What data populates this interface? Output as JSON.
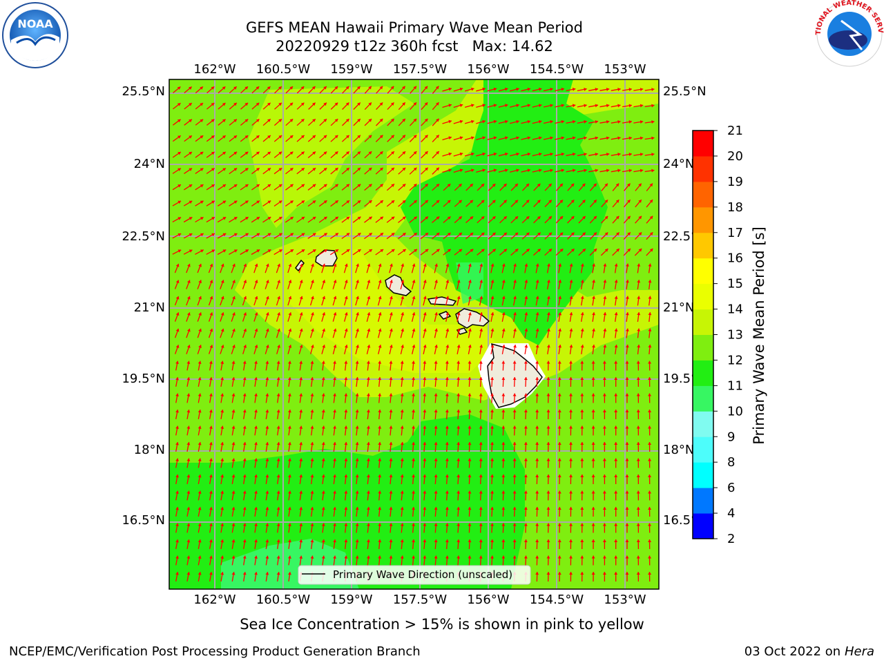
{
  "title_line1": "GEFS MEAN Hawaii Primary Wave Mean Period",
  "title_line2": "20220929 t12z 360h fcst   Max: 14.62",
  "lon_ticks": [
    "162°W",
    "160.5°W",
    "159°W",
    "157.5°W",
    "156°W",
    "154.5°W",
    "153°W"
  ],
  "lat_ticks": [
    "25.5°N",
    "24°N",
    "22.5°N",
    "21°N",
    "19.5°N",
    "18°N",
    "16.5°N"
  ],
  "colorbar": {
    "label": "Primary Wave Mean Period [s]",
    "ticks": [
      "2",
      "4",
      "6",
      "8",
      "9",
      "10",
      "11",
      "12",
      "13",
      "14",
      "15",
      "16",
      "17",
      "18",
      "19",
      "20",
      "21"
    ],
    "colors": [
      "#0000ff",
      "#0078ff",
      "#00ffff",
      "#4dfdfb",
      "#80fbf0",
      "#37f662",
      "#22ee13",
      "#7fee10",
      "#c7f505",
      "#eaff00",
      "#ffff00",
      "#ffc800",
      "#ff9600",
      "#ff6400",
      "#ff3200",
      "#ff0000"
    ]
  },
  "legend_label": "Primary Wave Direction (unscaled)",
  "caption": "Sea Ice Concentration > 15% is shown in pink to yellow",
  "credit": "NCEP/EMC/Verification Post Processing Product Generation Branch",
  "date_text": "03 Oct 2022 on ",
  "host": "Hera",
  "logos": {
    "left": "NOAA",
    "right": "NATIONAL WEATHER SERVICE"
  }
}
